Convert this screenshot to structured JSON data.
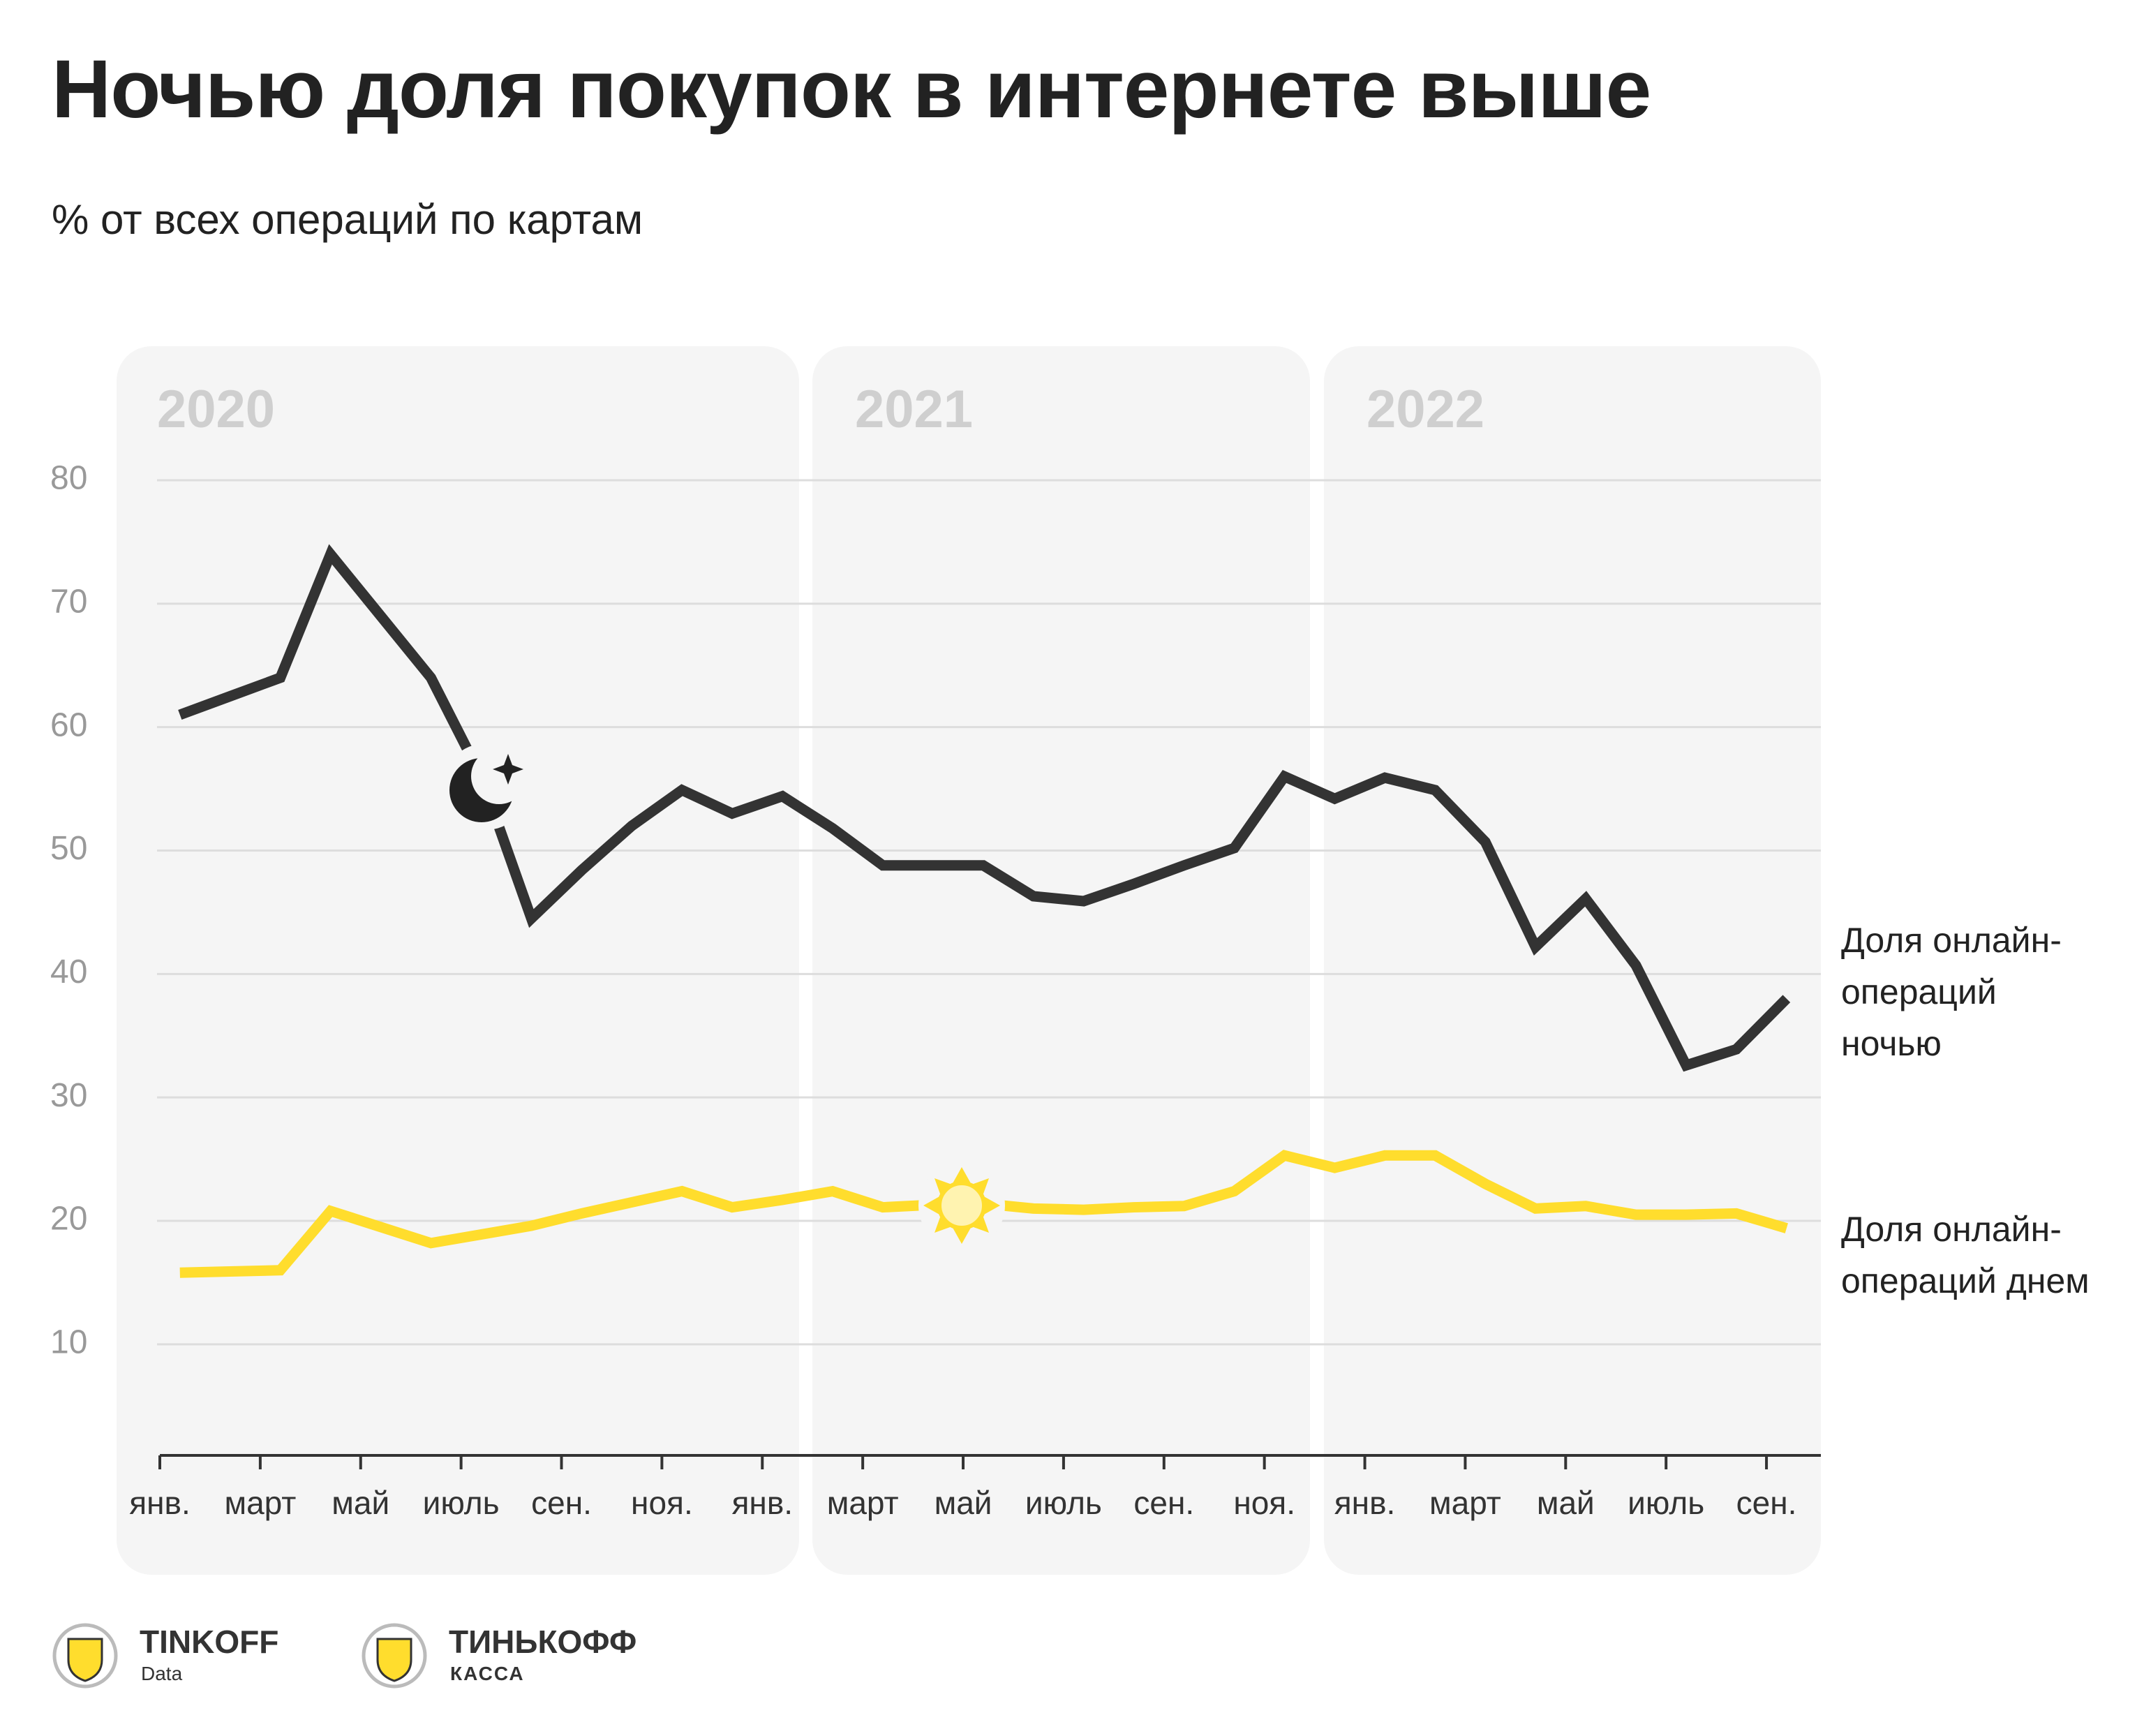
{
  "title": "Ночью доля покупок в интернете выше",
  "subtitle": "% от всех операций по картам",
  "years": [
    "2020",
    "2021",
    "2022"
  ],
  "footer": {
    "brand1": "TINKOFF",
    "brand1_sub": "Data",
    "brand2": "ТИНЬКОФФ",
    "brand2_sub": "КАССА"
  },
  "chart_data": {
    "type": "line",
    "x": [
      0.4,
      1.4,
      2.4,
      3.4,
      4.4,
      5.4,
      6.4,
      7.4,
      8.4,
      9.4,
      10.4,
      11.4,
      12.4,
      13.4,
      14.4,
      15.4,
      16.4,
      17.4,
      18.4,
      19.4,
      20.4,
      21.4,
      22.4,
      23.4,
      24.4,
      25.4,
      26.4,
      27.4,
      28.4,
      29.4,
      30.4,
      31.4,
      32.4
    ],
    "series": [
      {
        "name": "Доля онлайн-операций ночью",
        "color": "#333333",
        "values": [
          61.0,
          62.5,
          64.0,
          74.0,
          69.0,
          64.0,
          56.0,
          44.5,
          48.4,
          52.0,
          54.9,
          53.0,
          54.4,
          51.8,
          48.8,
          48.8,
          48.8,
          46.3,
          45.9,
          47.3,
          48.8,
          50.2,
          56.0,
          54.2,
          55.9,
          54.9,
          50.7,
          42.2,
          46.1,
          40.7,
          32.6,
          33.9,
          38.0
        ]
      },
      {
        "name": "Доля онлайн-операций днем",
        "color": "#ffdd2d",
        "values": [
          15.8,
          15.9,
          16.0,
          20.8,
          19.5,
          18.2,
          18.9,
          19.6,
          20.6,
          21.5,
          22.4,
          21.1,
          21.7,
          22.4,
          21.1,
          21.3,
          21.4,
          21.0,
          20.9,
          21.1,
          21.2,
          22.4,
          25.3,
          24.3,
          25.3,
          25.3,
          23.0,
          21.0,
          21.2,
          20.5,
          20.5,
          20.6,
          19.4
        ]
      }
    ],
    "xlim": [
      0,
      33
    ],
    "xticks": [
      {
        "value": 0,
        "label": "янв."
      },
      {
        "value": 2,
        "label": "март"
      },
      {
        "value": 4,
        "label": "май"
      },
      {
        "value": 6,
        "label": "июль"
      },
      {
        "value": 8,
        "label": "сен."
      },
      {
        "value": 10,
        "label": "ноя."
      },
      {
        "value": 12,
        "label": "янв."
      },
      {
        "value": 14,
        "label": "март"
      },
      {
        "value": 16,
        "label": "май"
      },
      {
        "value": 18,
        "label": "июль"
      },
      {
        "value": 20,
        "label": "сен."
      },
      {
        "value": 22,
        "label": "ноя."
      },
      {
        "value": 24,
        "label": "янв."
      },
      {
        "value": 26,
        "label": "март"
      },
      {
        "value": 28,
        "label": "май"
      },
      {
        "value": 30,
        "label": "июль"
      },
      {
        "value": 32,
        "label": "сен."
      }
    ],
    "ylim": [
      1,
      80
    ],
    "yticks": [
      10,
      20,
      30,
      40,
      50,
      60,
      70,
      80
    ],
    "grid": true
  }
}
